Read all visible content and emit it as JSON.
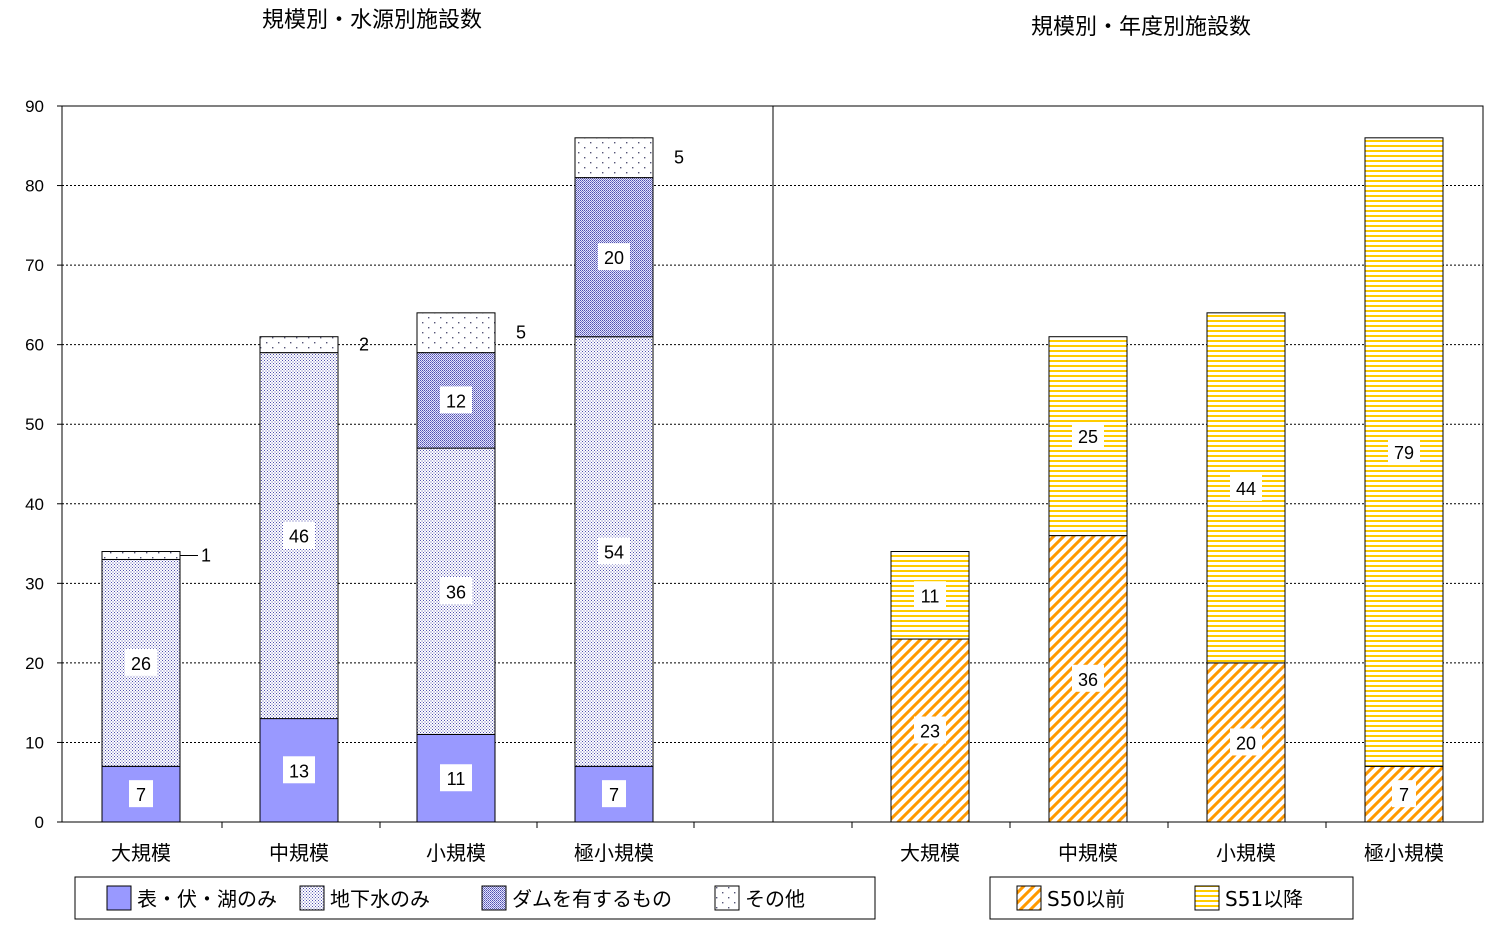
{
  "chart_data": [
    {
      "type": "bar",
      "stacked": true,
      "title": "規模別・水源別施設数",
      "categories": [
        "大規模",
        "中規模",
        "小規模",
        "極小規模"
      ],
      "series": [
        {
          "name": "表・伏・湖のみ",
          "values": [
            7,
            13,
            11,
            7
          ],
          "color": "#9999ff",
          "pattern": "solid"
        },
        {
          "name": "地下水のみ",
          "values": [
            26,
            46,
            36,
            54
          ],
          "color": "#8080d8",
          "pattern": "fine-dots"
        },
        {
          "name": "ダムを有するもの",
          "values": [
            0,
            0,
            12,
            20
          ],
          "color": "#7070c8",
          "pattern": "dense-dots"
        },
        {
          "name": "その他",
          "values": [
            1,
            2,
            5,
            5
          ],
          "color": "#606090",
          "pattern": "sparse-dots"
        }
      ],
      "ylim": [
        0,
        90
      ],
      "yticks": [
        0,
        10,
        20,
        30,
        40,
        50,
        60,
        70,
        80,
        90
      ],
      "grid": true,
      "legend": "bottom"
    },
    {
      "type": "bar",
      "stacked": true,
      "title": "規模別・年度別施設数",
      "categories": [
        "大規模",
        "中規模",
        "小規模",
        "極小規模"
      ],
      "series": [
        {
          "name": "S50以前",
          "values": [
            23,
            36,
            20,
            7
          ],
          "color": "#ff9900",
          "pattern": "diagonal"
        },
        {
          "name": "S51以降",
          "values": [
            11,
            25,
            44,
            79
          ],
          "color": "#ffcc00",
          "pattern": "horizontal"
        }
      ],
      "ylim": [
        0,
        90
      ],
      "grid": true,
      "legend": "bottom"
    }
  ]
}
